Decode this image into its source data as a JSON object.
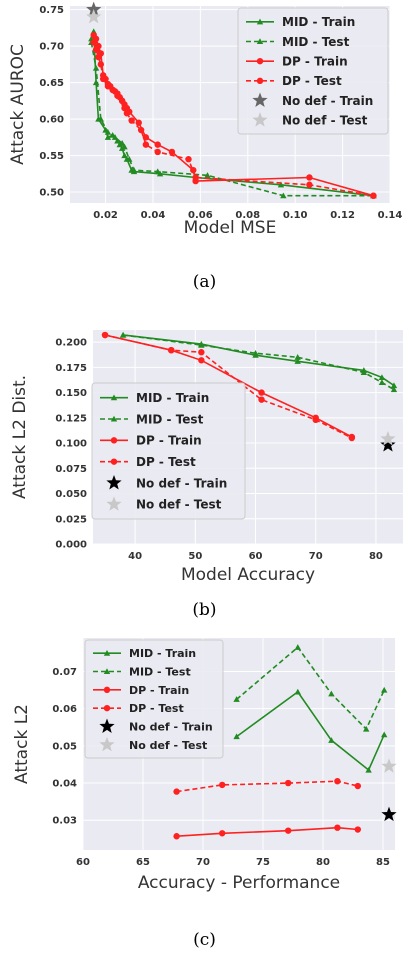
{
  "chart_data": [
    {
      "type": "line",
      "caption": "(a)",
      "xlabel": "Model MSE",
      "ylabel": "Attack AUROC",
      "xlim": [
        0.005,
        0.14
      ],
      "ylim": [
        0.485,
        0.755
      ],
      "xticks": [
        0.02,
        0.04,
        0.06,
        0.08,
        0.1,
        0.12,
        0.14
      ],
      "xtick_labels": [
        "0.02",
        "0.04",
        "0.06",
        "0.08",
        "0.10",
        "0.12",
        "0.14"
      ],
      "yticks": [
        0.5,
        0.55,
        0.6,
        0.65,
        0.7,
        0.75
      ],
      "ytick_labels": [
        "0.50",
        "0.55",
        "0.60",
        "0.65",
        "0.70",
        "0.75"
      ],
      "legend_position": "top-right",
      "series": [
        {
          "name": "MID - Train",
          "color": "#228b22",
          "style": "solid",
          "marker": "triangle",
          "points": [
            [
              0.014,
              0.71
            ],
            [
              0.015,
              0.72
            ],
            [
              0.016,
              0.65
            ],
            [
              0.017,
              0.6
            ],
            [
              0.02,
              0.585
            ],
            [
              0.021,
              0.575
            ],
            [
              0.023,
              0.578
            ],
            [
              0.025,
              0.57
            ],
            [
              0.026,
              0.565
            ],
            [
              0.027,
              0.56
            ],
            [
              0.028,
              0.55
            ],
            [
              0.029,
              0.545
            ],
            [
              0.031,
              0.53
            ],
            [
              0.032,
              0.528
            ],
            [
              0.043,
              0.525
            ],
            [
              0.058,
              0.52
            ],
            [
              0.094,
              0.51
            ],
            [
              0.133,
              0.495
            ]
          ]
        },
        {
          "name": "MID - Test",
          "color": "#228b22",
          "style": "dashed",
          "marker": "triangle",
          "points": [
            [
              0.014,
              0.705
            ],
            [
              0.016,
              0.67
            ],
            [
              0.018,
              0.6
            ],
            [
              0.021,
              0.582
            ],
            [
              0.024,
              0.575
            ],
            [
              0.027,
              0.567
            ],
            [
              0.028,
              0.562
            ],
            [
              0.03,
              0.545
            ],
            [
              0.032,
              0.53
            ],
            [
              0.042,
              0.528
            ],
            [
              0.063,
              0.523
            ],
            [
              0.095,
              0.495
            ],
            [
              0.133,
              0.495
            ]
          ]
        },
        {
          "name": "DP - Train",
          "color": "#ff2020",
          "style": "solid",
          "marker": "circle",
          "points": [
            [
              0.015,
              0.715
            ],
            [
              0.016,
              0.71
            ],
            [
              0.017,
              0.7
            ],
            [
              0.018,
              0.69
            ],
            [
              0.019,
              0.66
            ],
            [
              0.02,
              0.655
            ],
            [
              0.021,
              0.648
            ],
            [
              0.022,
              0.645
            ],
            [
              0.023,
              0.64
            ],
            [
              0.024,
              0.638
            ],
            [
              0.025,
              0.635
            ],
            [
              0.026,
              0.63
            ],
            [
              0.027,
              0.625
            ],
            [
              0.028,
              0.62
            ],
            [
              0.029,
              0.615
            ],
            [
              0.03,
              0.61
            ],
            [
              0.034,
              0.595
            ],
            [
              0.037,
              0.575
            ],
            [
              0.042,
              0.565
            ],
            [
              0.048,
              0.555
            ],
            [
              0.057,
              0.53
            ],
            [
              0.058,
              0.515
            ],
            [
              0.106,
              0.52
            ],
            [
              0.133,
              0.495
            ]
          ]
        },
        {
          "name": "DP - Test",
          "color": "#ff2020",
          "style": "dashed",
          "marker": "circle",
          "points": [
            [
              0.015,
              0.705
            ],
            [
              0.016,
              0.695
            ],
            [
              0.017,
              0.685
            ],
            [
              0.018,
              0.675
            ],
            [
              0.019,
              0.655
            ],
            [
              0.021,
              0.645
            ],
            [
              0.023,
              0.64
            ],
            [
              0.025,
              0.632
            ],
            [
              0.027,
              0.625
            ],
            [
              0.028,
              0.615
            ],
            [
              0.029,
              0.608
            ],
            [
              0.031,
              0.598
            ],
            [
              0.035,
              0.585
            ],
            [
              0.037,
              0.565
            ],
            [
              0.042,
              0.555
            ],
            [
              0.055,
              0.545
            ],
            [
              0.058,
              0.52
            ],
            [
              0.106,
              0.51
            ],
            [
              0.133,
              0.495
            ]
          ]
        },
        {
          "name": "No def - Train",
          "color": "#666666",
          "style": "none",
          "marker": "star",
          "points": [
            [
              0.015,
              0.75
            ]
          ]
        },
        {
          "name": "No def - Test",
          "color": "#c8c8c8",
          "style": "none",
          "marker": "star",
          "points": [
            [
              0.015,
              0.74
            ]
          ]
        }
      ]
    },
    {
      "type": "line",
      "caption": "(b)",
      "xlabel": "Model Accuracy",
      "ylabel": "Attack L2 Dist.",
      "xlim": [
        33,
        84.5
      ],
      "ylim": [
        0,
        0.212
      ],
      "xticks": [
        40,
        50,
        60,
        70,
        80
      ],
      "xtick_labels": [
        "40",
        "50",
        "60",
        "70",
        "80"
      ],
      "yticks": [
        0,
        0.025,
        0.05,
        0.075,
        0.1,
        0.125,
        0.15,
        0.175,
        0.2
      ],
      "ytick_labels": [
        "0.000",
        "0.025",
        "0.050",
        "0.075",
        "0.100",
        "0.125",
        "0.150",
        "0.175",
        "0.200"
      ],
      "legend_position": "bottom-left",
      "series": [
        {
          "name": "MID - Train",
          "color": "#228b22",
          "style": "solid",
          "marker": "triangle",
          "points": [
            [
              38,
              0.207
            ],
            [
              51,
              0.198
            ],
            [
              60,
              0.187
            ],
            [
              67,
              0.181
            ],
            [
              78,
              0.172
            ],
            [
              81,
              0.165
            ],
            [
              83,
              0.157
            ]
          ]
        },
        {
          "name": "MID - Test",
          "color": "#228b22",
          "style": "dashed",
          "marker": "triangle",
          "points": [
            [
              38,
              0.207
            ],
            [
              51,
              0.197
            ],
            [
              60,
              0.189
            ],
            [
              67,
              0.185
            ],
            [
              78,
              0.17
            ],
            [
              81,
              0.16
            ],
            [
              83,
              0.153
            ]
          ]
        },
        {
          "name": "DP - Train",
          "color": "#ff2020",
          "style": "solid",
          "marker": "circle",
          "points": [
            [
              35,
              0.207
            ],
            [
              46,
              0.192
            ],
            [
              51,
              0.182
            ],
            [
              61,
              0.15
            ],
            [
              70,
              0.125
            ],
            [
              76,
              0.106
            ]
          ]
        },
        {
          "name": "DP - Test",
          "color": "#ff2020",
          "style": "dashed",
          "marker": "circle",
          "points": [
            [
              35,
              0.207
            ],
            [
              46,
              0.192
            ],
            [
              51,
              0.19
            ],
            [
              61,
              0.143
            ],
            [
              70,
              0.123
            ],
            [
              76,
              0.105
            ]
          ]
        },
        {
          "name": "No def - Train",
          "color": "#000000",
          "style": "none",
          "marker": "star",
          "points": [
            [
              82,
              0.098
            ]
          ]
        },
        {
          "name": "No def - Test",
          "color": "#c8c8c8",
          "style": "none",
          "marker": "star",
          "points": [
            [
              82,
              0.104
            ]
          ]
        }
      ]
    },
    {
      "type": "line",
      "caption": "(c)",
      "xlabel": "Accuracy - Performance",
      "ylabel": "Attack L2",
      "xlim": [
        60,
        86
      ],
      "ylim": [
        0.022,
        0.079
      ],
      "xticks": [
        60,
        65,
        70,
        75,
        80,
        85
      ],
      "xtick_labels": [
        "60",
        "65",
        "70",
        "75",
        "80",
        "85"
      ],
      "yticks": [
        0.03,
        0.04,
        0.05,
        0.06,
        0.07
      ],
      "ytick_labels": [
        "0.03",
        "0.04",
        "0.05",
        "0.06",
        "0.07"
      ],
      "legend_position": "top-left",
      "series": [
        {
          "name": "MID - Train",
          "color": "#228b22",
          "style": "solid",
          "marker": "triangle",
          "points": [
            [
              72.8,
              0.0525
            ],
            [
              77.9,
              0.0645
            ],
            [
              80.7,
              0.0515
            ],
            [
              83.8,
              0.0435
            ],
            [
              85.1,
              0.053
            ]
          ]
        },
        {
          "name": "MID - Test",
          "color": "#228b22",
          "style": "dashed",
          "marker": "triangle",
          "points": [
            [
              72.8,
              0.0625
            ],
            [
              77.9,
              0.0765
            ],
            [
              80.7,
              0.064
            ],
            [
              83.6,
              0.0545
            ],
            [
              85.1,
              0.065
            ]
          ]
        },
        {
          "name": "DP - Train",
          "color": "#ff2020",
          "style": "solid",
          "marker": "circle",
          "points": [
            [
              67.8,
              0.0257
            ],
            [
              71.6,
              0.0265
            ],
            [
              77.1,
              0.0272
            ],
            [
              81.2,
              0.028
            ],
            [
              82.9,
              0.0275
            ]
          ]
        },
        {
          "name": "DP - Test",
          "color": "#ff2020",
          "style": "dashed",
          "marker": "circle",
          "points": [
            [
              67.8,
              0.0377
            ],
            [
              71.6,
              0.0395
            ],
            [
              77.1,
              0.04
            ],
            [
              81.2,
              0.0405
            ],
            [
              82.9,
              0.0392
            ]
          ]
        },
        {
          "name": "No def - Train",
          "color": "#000000",
          "style": "none",
          "marker": "star",
          "points": [
            [
              85.5,
              0.0315
            ]
          ]
        },
        {
          "name": "No def - Test",
          "color": "#c8c8c8",
          "style": "none",
          "marker": "star",
          "points": [
            [
              85.5,
              0.0445
            ]
          ]
        }
      ]
    }
  ]
}
